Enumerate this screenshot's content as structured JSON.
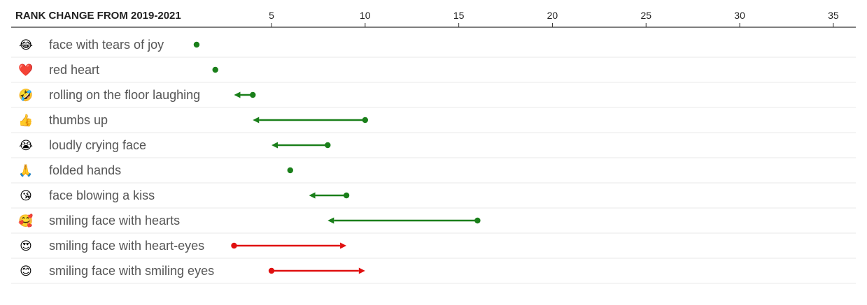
{
  "chart_data": {
    "type": "dot-arrow",
    "title": "RANK CHANGE FROM 2019-2021",
    "x_ticks": [
      5,
      10,
      15,
      20,
      25,
      30,
      35
    ],
    "xlim": [
      -8.9,
      36.2
    ],
    "colors": {
      "improved": "#1a7f1a",
      "declined": "#e01010"
    },
    "rows": [
      {
        "icon": "😂",
        "icon_name": "face-with-tears-of-joy-icon",
        "label": "face with tears of joy",
        "rank_2019": 1,
        "rank_2021": 1
      },
      {
        "icon": "❤️",
        "icon_name": "red-heart-icon",
        "label": "red heart",
        "rank_2019": 2,
        "rank_2021": 2
      },
      {
        "icon": "🤣",
        "icon_name": "rolling-on-the-floor-laughing-icon",
        "label": "rolling on the floor laughing",
        "rank_2019": 4,
        "rank_2021": 3
      },
      {
        "icon": "👍",
        "icon_name": "thumbs-up-icon",
        "label": "thumbs up",
        "rank_2019": 10,
        "rank_2021": 4
      },
      {
        "icon": "😭",
        "icon_name": "loudly-crying-face-icon",
        "label": "loudly crying face",
        "rank_2019": 8,
        "rank_2021": 5
      },
      {
        "icon": "🙏",
        "icon_name": "folded-hands-icon",
        "label": "folded hands",
        "rank_2019": 6,
        "rank_2021": 6
      },
      {
        "icon": "😘",
        "icon_name": "face-blowing-a-kiss-icon",
        "label": "face blowing a kiss",
        "rank_2019": 9,
        "rank_2021": 7
      },
      {
        "icon": "🥰",
        "icon_name": "smiling-face-with-hearts-icon",
        "label": "smiling face with hearts",
        "rank_2019": 16,
        "rank_2021": 8
      },
      {
        "icon": "😍",
        "icon_name": "smiling-face-with-heart-eyes-icon",
        "label": "smiling face with heart-eyes",
        "rank_2019": 3,
        "rank_2021": 9
      },
      {
        "icon": "😊",
        "icon_name": "smiling-face-with-smiling-eyes-icon",
        "label": "smiling face with smiling eyes",
        "rank_2019": 5,
        "rank_2021": 10
      }
    ]
  }
}
